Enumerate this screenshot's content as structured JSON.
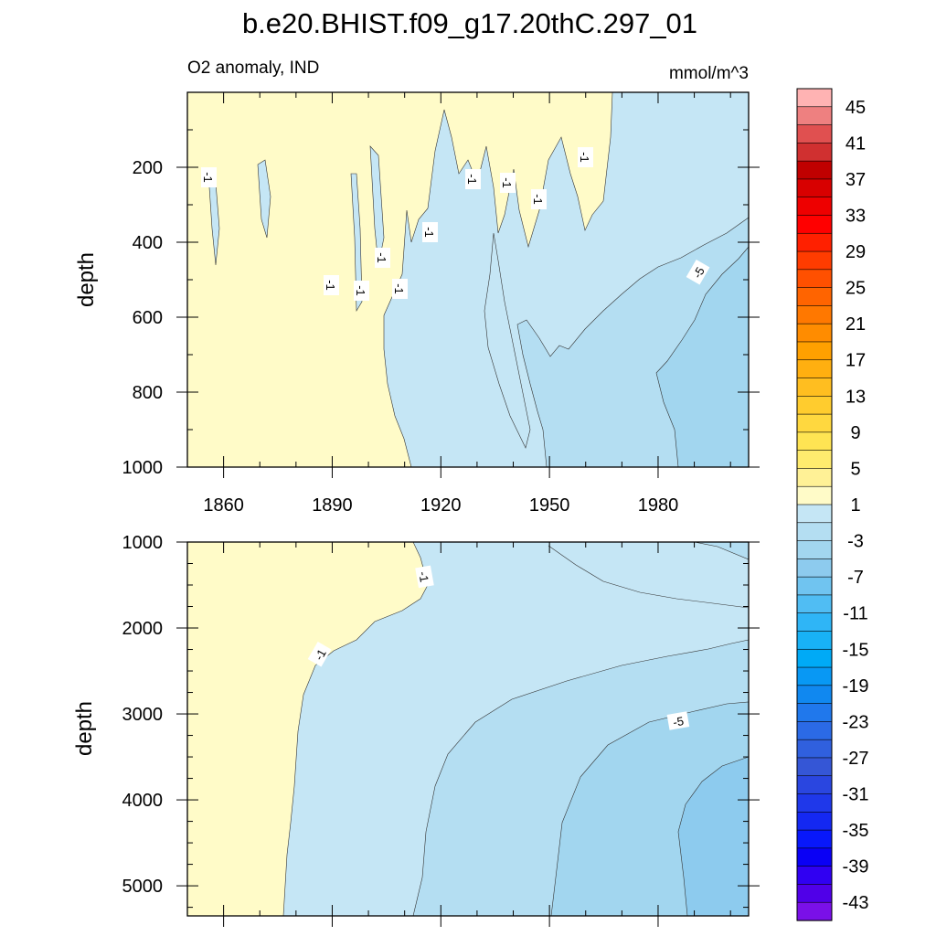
{
  "chart_data": {
    "type": "contour",
    "title": "b.e20.BHIST.f09_g17.20thC.297_01",
    "subtitle_left": "O2 anomaly, IND",
    "subtitle_right": "mmol/m^3",
    "x_range": [
      1850,
      2005
    ],
    "x_ticks": [
      "1860",
      "1890",
      "1920",
      "1950",
      "1980"
    ],
    "panels": [
      {
        "name": "upper",
        "ylabel": "depth",
        "y_range": [
          0,
          1000
        ],
        "y_ticks": [
          "200",
          "400",
          "600",
          "800",
          "1000"
        ],
        "contour_labels": [
          "-1",
          "-1",
          "-1",
          "-1",
          "-1",
          "-1",
          "-1",
          "-1",
          "-1",
          "-1",
          "-5"
        ]
      },
      {
        "name": "lower",
        "ylabel": "depth",
        "y_range": [
          1000,
          5350
        ],
        "y_ticks": [
          "1000",
          "2000",
          "3000",
          "4000",
          "5000"
        ],
        "contour_labels": [
          "-1",
          "-1",
          "-5"
        ]
      }
    ],
    "colorbar": {
      "labels": [
        "45",
        "41",
        "37",
        "33",
        "29",
        "25",
        "21",
        "17",
        "13",
        "9",
        "5",
        "1",
        "-3",
        "-7",
        "-11",
        "-15",
        "-19",
        "-23",
        "-27",
        "-31",
        "-35",
        "-39",
        "-43"
      ],
      "colors": [
        "#FFB3B3",
        "#EE8080",
        "#E05050",
        "#D03030",
        "#C00000",
        "#D80000",
        "#EE0000",
        "#FF0000",
        "#FF2000",
        "#FF3C00",
        "#FF5000",
        "#FF6400",
        "#FF7800",
        "#FF8C00",
        "#FFA000",
        "#FFAF10",
        "#FFBE20",
        "#FFCC2E",
        "#FFD83F",
        "#FFE453",
        "#FFEB6E",
        "#FFF196",
        "#FFFBC8",
        "#C5E6F5",
        "#B4DEF2",
        "#A2D6EF",
        "#8DCBEE",
        "#70C4F0",
        "#50BDF3",
        "#2FB5F6",
        "#18B2F6",
        "#00AAF6",
        "#0898F4",
        "#1088F0",
        "#2078EC",
        "#2B6AE6",
        "#3060DE",
        "#3556D6",
        "#2A46E0",
        "#1F38EA",
        "#1428F2",
        "#0818FA",
        "#0A00F5",
        "#3000F2",
        "#5000E8",
        "#7A10E8"
      ]
    },
    "colors": {
      "field_1": "#FFFBC8",
      "field_m3": "#C5E6F5",
      "field_m5": "#B4DEF2",
      "field_m7": "#A2D6EF",
      "field_m9": "#8DCBEE"
    }
  }
}
